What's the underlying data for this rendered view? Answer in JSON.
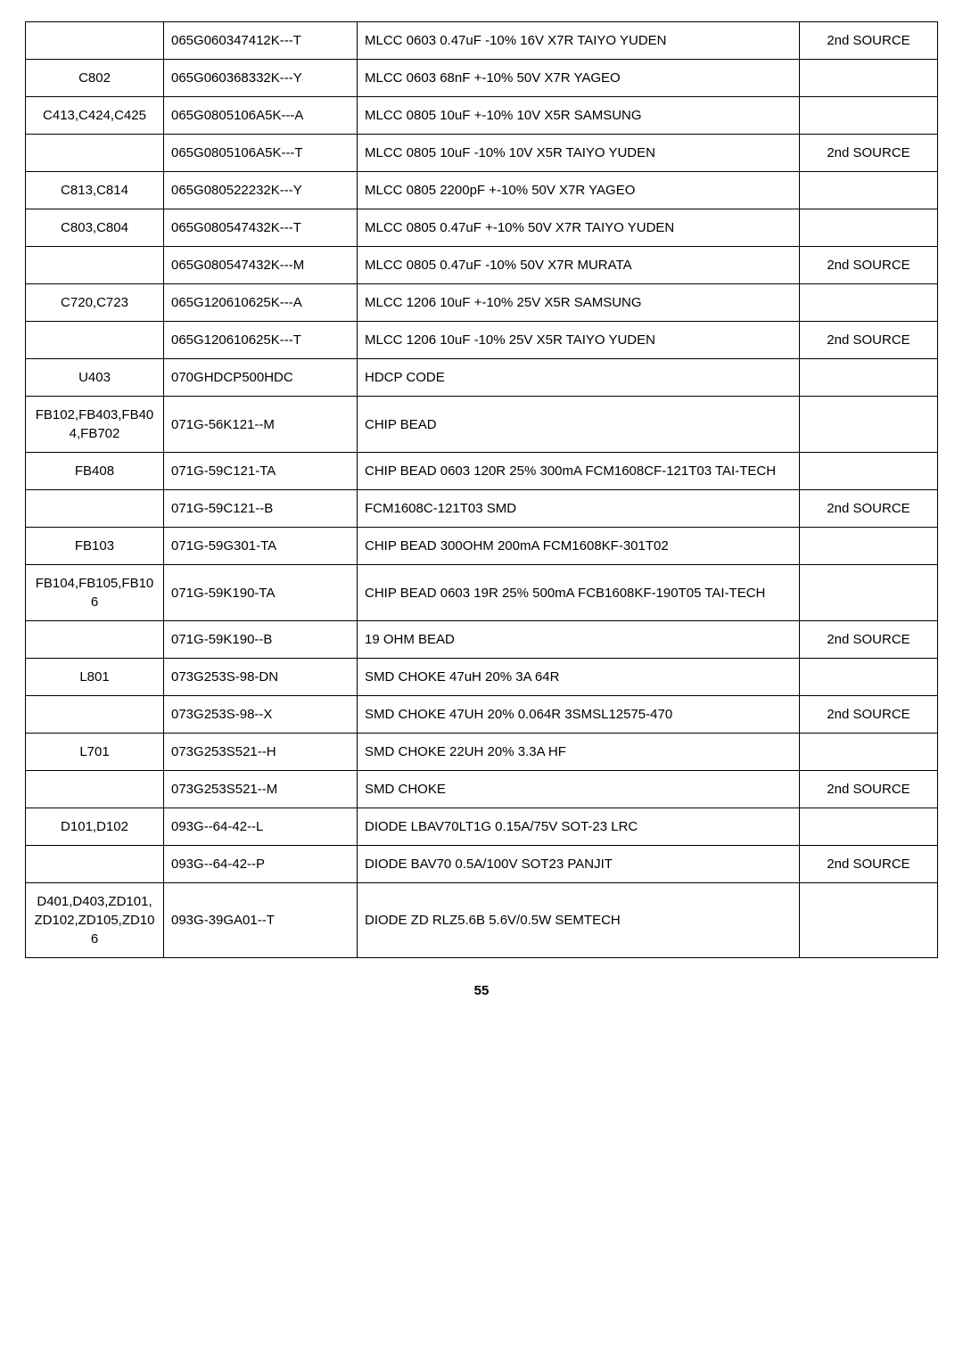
{
  "table": {
    "rows": [
      {
        "ref": "",
        "part": "065G060347412K---T",
        "desc": "MLCC 0603 0.47uF   -10% 16V X7R TAIYO YUDEN",
        "note": "2nd SOURCE"
      },
      {
        "ref": "C802",
        "part": "065G060368332K---Y",
        "desc": "MLCC 0603 68nF +-10% 50V X7R YAGEO",
        "note": ""
      },
      {
        "ref": "C413,C424,C425",
        "part": "065G0805106A5K---A",
        "desc": "MLCC 0805 10uF +-10% 10V X5R SAMSUNG",
        "note": ""
      },
      {
        "ref": "",
        "part": "065G0805106A5K---T",
        "desc": "MLCC 0805 10uF   -10% 10V X5R TAIYO YUDEN",
        "note": "2nd SOURCE"
      },
      {
        "ref": "C813,C814",
        "part": "065G080522232K---Y",
        "desc": "MLCC 0805 2200pF +-10% 50V X7R YAGEO",
        "note": ""
      },
      {
        "ref": "C803,C804",
        "part": "065G080547432K---T",
        "desc": "MLCC 0805 0.47uF +-10% 50V X7R TAIYO YUDEN",
        "note": ""
      },
      {
        "ref": "",
        "part": "065G080547432K---M",
        "desc": "MLCC 0805 0.47uF   -10% 50V X7R MURATA",
        "note": "2nd SOURCE"
      },
      {
        "ref": "C720,C723",
        "part": "065G120610625K---A",
        "desc": "MLCC 1206 10uF +-10% 25V X5R SAMSUNG",
        "note": ""
      },
      {
        "ref": "",
        "part": "065G120610625K---T",
        "desc": "MLCC 1206 10uF   -10% 25V X5R TAIYO YUDEN",
        "note": "2nd SOURCE"
      },
      {
        "ref": "U403",
        "part": "070GHDCP500HDC",
        "desc": "HDCP CODE",
        "note": ""
      },
      {
        "ref": "FB102,FB403,FB404,FB702",
        "part": "071G-56K121--M",
        "desc": "CHIP BEAD",
        "note": ""
      },
      {
        "ref": "FB408",
        "part": "071G-59C121-TA",
        "desc": "CHIP BEAD 0603 120R 25% 300mA FCM1608CF-121T03 TAI-TECH",
        "note": ""
      },
      {
        "ref": "",
        "part": "071G-59C121--B",
        "desc": "FCM1608C-121T03 SMD",
        "note": "2nd SOURCE"
      },
      {
        "ref": "FB103",
        "part": "071G-59G301-TA",
        "desc": "CHIP BEAD 300OHM 200mA FCM1608KF-301T02",
        "note": ""
      },
      {
        "ref": "FB104,FB105,FB106",
        "part": "071G-59K190-TA",
        "desc": "CHIP BEAD 0603 19R 25% 500mA FCB1608KF-190T05 TAI-TECH",
        "note": ""
      },
      {
        "ref": "",
        "part": "071G-59K190--B",
        "desc": "19 OHM BEAD",
        "note": "2nd SOURCE"
      },
      {
        "ref": "L801",
        "part": "073G253S-98-DN",
        "desc": "SMD CHOKE 47uH 20% 3A 64R",
        "note": ""
      },
      {
        "ref": "",
        "part": "073G253S-98--X",
        "desc": "SMD CHOKE 47UH 20% 0.064R 3SMSL12575-470",
        "note": "2nd SOURCE"
      },
      {
        "ref": "L701",
        "part": "073G253S521--H",
        "desc": "SMD CHOKE 22UH 20% 3.3A   HF",
        "note": ""
      },
      {
        "ref": "",
        "part": "073G253S521--M",
        "desc": "SMD CHOKE",
        "note": "2nd SOURCE"
      },
      {
        "ref": "D101,D102",
        "part": "093G--64-42--L",
        "desc": "DIODE LBAV70LT1G 0.15A/75V SOT-23 LRC",
        "note": ""
      },
      {
        "ref": "",
        "part": "093G--64-42--P",
        "desc": "DIODE BAV70 0.5A/100V SOT23 PANJIT",
        "note": "2nd SOURCE"
      },
      {
        "ref": "D401,D403,ZD101,ZD102,ZD105,ZD106",
        "part": "093G-39GA01--T",
        "desc": "DIODE ZD RLZ5.6B 5.6V/0.5W SEMTECH",
        "note": ""
      }
    ]
  },
  "page_number": "55"
}
